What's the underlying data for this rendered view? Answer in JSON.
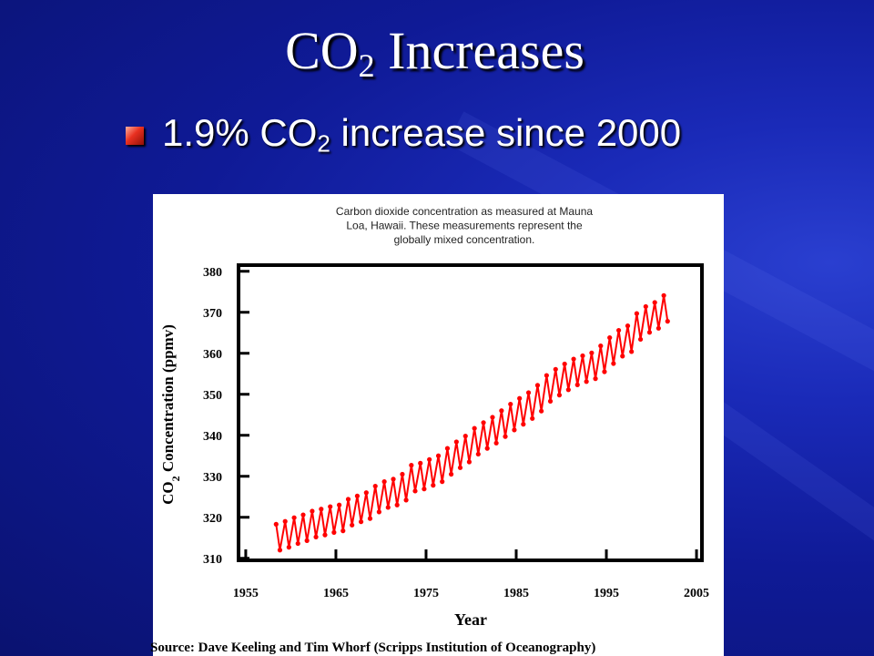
{
  "slide": {
    "title": {
      "main": "CO",
      "sub": "2",
      "rest": " Increases"
    },
    "bullet": {
      "main": "1.9% CO",
      "sub": "2",
      "rest": " increase since 2000"
    }
  },
  "chart_data": {
    "type": "scatter",
    "subtitle_lines": [
      "Carbon dioxide concentration as measured at Mauna",
      "Loa, Hawaii. These measurements represent the",
      "globally mixed concentration."
    ],
    "y_label": {
      "main": "CO",
      "sub": "2",
      "rest": " Concentration (ppmv)"
    },
    "x_label": "Year",
    "source": "Source: Dave Keeling and Tim Whorf (Scripps Institution of Oceanography)",
    "color": "#ff0000",
    "xlim": [
      1954.2,
      2005.6
    ],
    "xticks": [
      1955,
      1965,
      1975,
      1985,
      1995,
      2005
    ],
    "ylim": [
      309.5,
      381.5
    ],
    "yticks": [
      310,
      320,
      330,
      340,
      350,
      360,
      370,
      380
    ],
    "x": [
      1958.37,
      1958.79,
      1959.37,
      1959.79,
      1960.37,
      1960.79,
      1961.37,
      1961.79,
      1962.37,
      1962.79,
      1963.37,
      1963.79,
      1964.37,
      1964.79,
      1965.37,
      1965.79,
      1966.37,
      1966.79,
      1967.37,
      1967.79,
      1968.37,
      1968.79,
      1969.37,
      1969.79,
      1970.37,
      1970.79,
      1971.37,
      1971.79,
      1972.37,
      1972.79,
      1973.37,
      1973.79,
      1974.37,
      1974.79,
      1975.37,
      1975.79,
      1976.37,
      1976.79,
      1977.37,
      1977.79,
      1978.37,
      1978.79,
      1979.37,
      1979.79,
      1980.37,
      1980.79,
      1981.37,
      1981.79,
      1982.37,
      1982.79,
      1983.37,
      1983.79,
      1984.37,
      1984.79,
      1985.37,
      1985.79,
      1986.37,
      1986.79,
      1987.37,
      1987.79,
      1988.37,
      1988.79,
      1989.37,
      1989.79,
      1990.37,
      1990.79,
      1991.37,
      1991.79,
      1992.37,
      1992.79,
      1993.37,
      1993.79,
      1994.37,
      1994.79,
      1995.37,
      1995.79,
      1996.37,
      1996.79,
      1997.37,
      1997.79,
      1998.37,
      1998.79,
      1999.37,
      1999.79,
      2000.37,
      2000.79,
      2001.37,
      2001.79
    ],
    "values": [
      318.3,
      312.0,
      319.0,
      312.7,
      319.9,
      313.6,
      320.6,
      314.3,
      321.5,
      315.2,
      322.0,
      315.7,
      322.6,
      316.3,
      323.0,
      316.7,
      324.4,
      318.1,
      325.2,
      318.9,
      326.0,
      319.7,
      327.6,
      321.3,
      328.7,
      322.4,
      329.3,
      323.0,
      330.5,
      324.2,
      332.7,
      326.4,
      333.2,
      326.9,
      334.1,
      327.8,
      335.0,
      328.7,
      336.8,
      330.5,
      338.4,
      332.1,
      339.8,
      333.5,
      341.7,
      335.4,
      343.1,
      336.8,
      344.4,
      338.1,
      346.0,
      339.7,
      347.6,
      341.3,
      349.0,
      342.7,
      350.4,
      344.1,
      352.2,
      345.9,
      354.6,
      348.3,
      356.1,
      349.8,
      357.4,
      351.1,
      358.6,
      352.3,
      359.4,
      353.1,
      360.1,
      353.8,
      361.8,
      355.5,
      363.8,
      357.5,
      365.6,
      359.3,
      366.7,
      360.4,
      369.7,
      363.4,
      371.4,
      365.1,
      372.4,
      366.1,
      374.1,
      367.8
    ]
  }
}
